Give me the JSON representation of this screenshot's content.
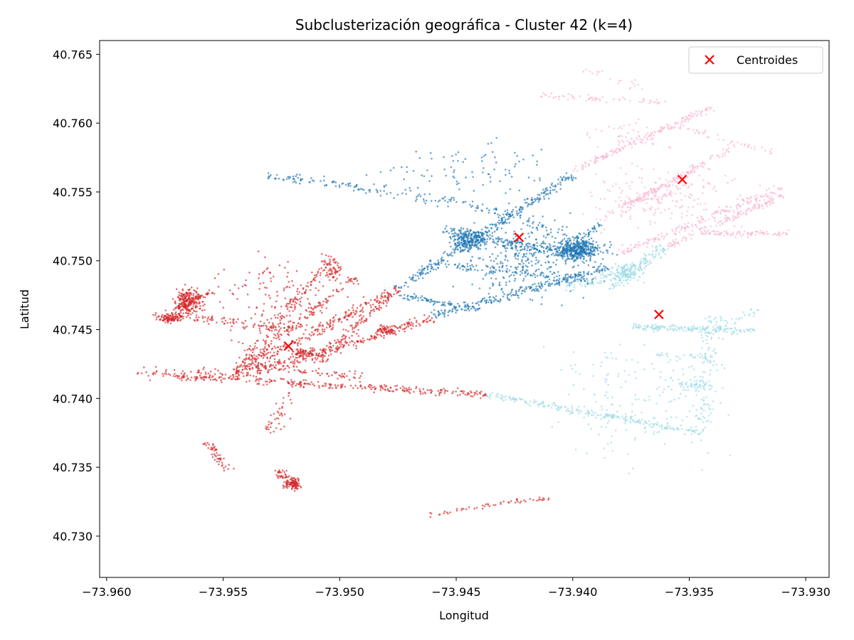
{
  "chart_data": {
    "type": "scatter",
    "title": "Subclusterización geográfica - Cluster 42 (k=4)",
    "xlabel": "Longitud",
    "ylabel": "Latitud",
    "xlim": [
      -73.9603,
      -73.929
    ],
    "ylim": [
      40.727,
      40.766
    ],
    "x_ticks": [
      -73.96,
      -73.955,
      -73.95,
      -73.945,
      -73.94,
      -73.935,
      -73.93
    ],
    "x_tick_labels": [
      "−73.960",
      "−73.955",
      "−73.950",
      "−73.945",
      "−73.940",
      "−73.935",
      "−73.930"
    ],
    "y_ticks": [
      40.73,
      40.735,
      40.74,
      40.745,
      40.75,
      40.755,
      40.76,
      40.765
    ],
    "y_tick_labels": [
      "40.730",
      "40.735",
      "40.740",
      "40.745",
      "40.750",
      "40.755",
      "40.760",
      "40.765"
    ],
    "grid": false,
    "legend_position": "top-right",
    "colors": {
      "cluster_red": "#d62728",
      "cluster_blue": "#1f77b4",
      "cluster_pink": "#f7b6d2",
      "cluster_cyan": "#9edae5",
      "centroid": "#ff0000"
    },
    "subclusters": [
      {
        "color": "#d62728",
        "segments": [
          [
            -73.9545,
            40.7415,
            -73.946,
            40.7458,
            260,
            0.00018
          ],
          [
            -73.9545,
            40.7418,
            -73.9493,
            40.7488,
            160,
            0.00015
          ],
          [
            -73.9545,
            40.742,
            -73.9503,
            40.7503,
            140,
            0.00015
          ],
          [
            -73.954,
            40.7422,
            -73.9475,
            40.748,
            200,
            0.00018
          ],
          [
            -73.951,
            40.7425,
            -73.9475,
            40.748,
            130,
            0.00015
          ],
          [
            -73.957,
            40.7416,
            -73.9437,
            40.7403,
            280,
            0.00012
          ],
          [
            -73.958,
            40.7462,
            -73.952,
            40.745,
            110,
            0.00018
          ],
          [
            -73.954,
            40.7425,
            -73.949,
            40.7415,
            70,
            0.00015
          ],
          [
            -73.957,
            40.7465,
            -73.9555,
            40.7478,
            60,
            0.0001
          ],
          [
            -73.9587,
            40.7418,
            -73.9547,
            40.7418,
            60,
            0.00018
          ],
          [
            -73.9557,
            40.7368,
            -73.9547,
            40.7347,
            50,
            0.00012
          ],
          [
            -73.9527,
            40.7348,
            -73.9517,
            40.7335,
            60,
            0.00012
          ],
          [
            -73.9462,
            40.7315,
            -73.943,
            40.7324,
            30,
            8e-05
          ],
          [
            -73.943,
            40.7324,
            -73.941,
            40.7327,
            25,
            8e-05
          ],
          [
            -73.953,
            40.7375,
            -73.952,
            40.7405,
            40,
            0.0002
          ]
        ],
        "blobs": [
          [
            -73.9565,
            40.747,
            0.00045,
            0.00075,
            220
          ],
          [
            -73.9573,
            40.7458,
            0.0004,
            0.00025,
            90
          ],
          [
            -73.952,
            40.7338,
            0.0003,
            0.0003,
            80
          ],
          [
            -73.9503,
            40.7493,
            0.0003,
            0.0005,
            50
          ],
          [
            -73.948,
            40.745,
            0.0004,
            0.0003,
            50
          ],
          [
            -73.9515,
            40.7433,
            0.0005,
            0.0003,
            70
          ],
          [
            -73.9527,
            40.747,
            0.002,
            0.0025,
            140
          ]
        ]
      },
      {
        "color": "#1f77b4",
        "segments": [
          [
            -73.9475,
            40.748,
            -73.94,
            40.7562,
            300,
            0.00015
          ],
          [
            -73.946,
            40.746,
            -73.9385,
            40.7495,
            220,
            0.00015
          ],
          [
            -73.9475,
            40.7475,
            -73.944,
            40.7465,
            80,
            0.00012
          ],
          [
            -73.946,
            40.7498,
            -73.939,
            40.7485,
            100,
            0.00012
          ],
          [
            -73.9532,
            40.7563,
            -73.944,
            40.754,
            130,
            0.0002
          ],
          [
            -73.944,
            40.754,
            -73.938,
            40.7505,
            90,
            0.0002
          ],
          [
            -73.9455,
            40.7523,
            -73.9398,
            40.7503,
            160,
            0.0002
          ],
          [
            -73.9388,
            40.7528,
            -73.94,
            40.751,
            40,
            0.0001
          ]
        ],
        "blobs": [
          [
            -73.9398,
            40.7508,
            0.0007,
            0.0006,
            380
          ],
          [
            -73.9445,
            40.7515,
            0.0006,
            0.00055,
            200
          ],
          [
            -73.942,
            40.75,
            0.002,
            0.0023,
            320
          ],
          [
            -73.9445,
            40.7565,
            0.0035,
            0.0016,
            90
          ]
        ]
      },
      {
        "color": "#f7b6d2",
        "segments": [
          [
            -73.94,
            40.7565,
            -73.934,
            40.7612,
            160,
            0.0001
          ],
          [
            -73.938,
            40.7505,
            -73.931,
            40.7553,
            170,
            0.00012
          ],
          [
            -73.936,
            40.751,
            -73.931,
            40.7548,
            130,
            0.00012
          ],
          [
            -73.939,
            40.7528,
            -73.933,
            40.7583,
            150,
            0.00012
          ],
          [
            -73.9345,
            40.752,
            -73.9307,
            40.752,
            90,
            0.0001
          ],
          [
            -73.938,
            40.7542,
            -73.9355,
            40.7548,
            40,
            0.0001
          ],
          [
            -73.9395,
            40.764,
            -73.937,
            40.7625,
            20,
            0.0002
          ],
          [
            -73.9415,
            40.762,
            -73.936,
            40.7615,
            60,
            0.0001
          ],
          [
            -73.936,
            40.76,
            -73.9313,
            40.7578,
            45,
            0.00012
          ]
        ],
        "blobs": [
          [
            -73.936,
            40.7545,
            0.0025,
            0.002,
            180
          ],
          [
            -73.9375,
            40.759,
            0.0015,
            0.0008,
            50
          ]
        ]
      },
      {
        "color": "#9edae5",
        "segments": [
          [
            -73.9437,
            40.7403,
            -73.9345,
            40.7375,
            220,
            0.00012
          ],
          [
            -73.9385,
            40.748,
            -73.936,
            40.751,
            120,
            0.0002
          ],
          [
            -73.9405,
            40.748,
            -73.937,
            40.7495,
            80,
            0.0002
          ],
          [
            -73.9375,
            40.7452,
            -73.9322,
            40.7449,
            160,
            0.00012
          ],
          [
            -73.934,
            40.746,
            -73.9345,
            40.7375,
            120,
            0.00025
          ],
          [
            -73.9355,
            40.7408,
            -73.934,
            40.741,
            40,
            0.0002
          ],
          [
            -73.932,
            40.7465,
            -73.934,
            40.745,
            30,
            0.00012
          ],
          [
            -73.9365,
            40.7432,
            -73.934,
            40.743,
            30,
            0.0001
          ],
          [
            -73.9385,
            40.7435,
            -73.9385,
            40.7355,
            25,
            0.00015
          ]
        ],
        "blobs": [
          [
            -73.937,
            40.74,
            0.003,
            0.0035,
            160
          ],
          [
            -73.9378,
            40.7492,
            0.0006,
            0.0005,
            100
          ]
        ]
      }
    ],
    "centroids": [
      {
        "x": -73.9522,
        "y": 40.7438
      },
      {
        "x": -73.9423,
        "y": 40.7517
      },
      {
        "x": -73.9353,
        "y": 40.7559
      },
      {
        "x": -73.9363,
        "y": 40.7461
      }
    ],
    "legend": [
      {
        "label": "Centroides",
        "color": "#ff0000",
        "marker": "x"
      }
    ]
  }
}
